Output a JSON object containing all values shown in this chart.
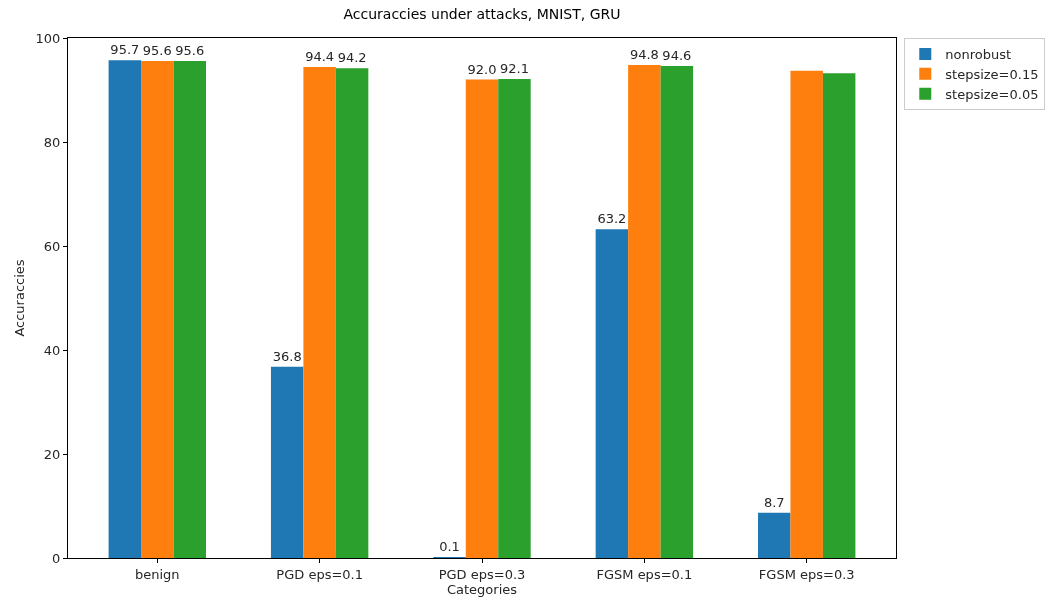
{
  "chart_data": {
    "type": "bar",
    "title": "Accuraccies under attacks, MNIST, GRU",
    "xlabel": "Categories",
    "ylabel": "Accuraccies",
    "categories": [
      "benign",
      "PGD eps=0.1",
      "PGD eps=0.3",
      "FGSM eps=0.1",
      "FGSM eps=0.3"
    ],
    "series": [
      {
        "name": "nonrobust",
        "color": "#1f77b4",
        "values": [
          95.7,
          36.8,
          0.1,
          63.2,
          8.7
        ],
        "value_labels": [
          "95.7",
          "36.8",
          "0.1",
          "63.2",
          "8.7"
        ]
      },
      {
        "name": "stepsize=0.15",
        "color": "#ff7f0e",
        "values": [
          95.6,
          94.4,
          92.0,
          94.8,
          93.7
        ],
        "value_labels": [
          "95.6",
          "94.4",
          "92.0",
          "94.8",
          null
        ]
      },
      {
        "name": "stepsize=0.05",
        "color": "#2ca02c",
        "values": [
          95.6,
          94.2,
          92.1,
          94.6,
          93.2
        ],
        "value_labels": [
          "95.6",
          "94.2",
          "92.1",
          "94.6",
          null
        ]
      }
    ],
    "ylim": [
      0,
      100
    ],
    "yticks": [
      0,
      20,
      40,
      60,
      80,
      100
    ],
    "legend": "top right"
  }
}
